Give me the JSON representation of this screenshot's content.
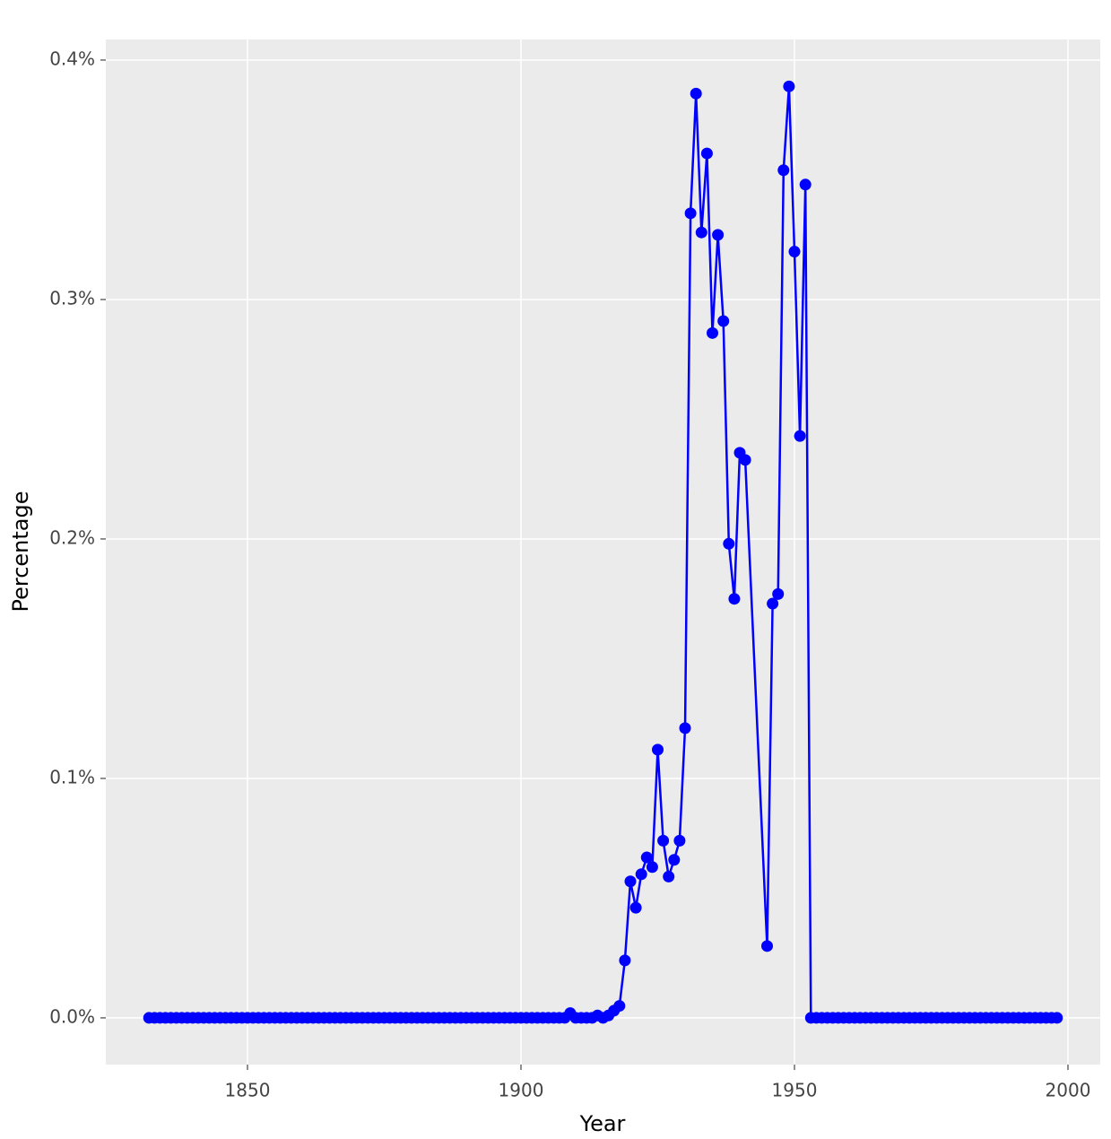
{
  "chart_data": {
    "type": "line",
    "x_label": "Year",
    "y_label": "Percentage",
    "x": [
      1832,
      1833,
      1834,
      1835,
      1836,
      1837,
      1838,
      1839,
      1840,
      1841,
      1842,
      1843,
      1844,
      1845,
      1846,
      1847,
      1848,
      1849,
      1850,
      1851,
      1852,
      1853,
      1854,
      1855,
      1856,
      1857,
      1858,
      1859,
      1860,
      1861,
      1862,
      1863,
      1864,
      1865,
      1866,
      1867,
      1868,
      1869,
      1870,
      1871,
      1872,
      1873,
      1874,
      1875,
      1876,
      1877,
      1878,
      1879,
      1880,
      1881,
      1882,
      1883,
      1884,
      1885,
      1886,
      1887,
      1888,
      1889,
      1890,
      1891,
      1892,
      1893,
      1894,
      1895,
      1896,
      1897,
      1898,
      1899,
      1900,
      1901,
      1902,
      1903,
      1904,
      1905,
      1906,
      1907,
      1908,
      1909,
      1910,
      1911,
      1912,
      1913,
      1914,
      1915,
      1916,
      1917,
      1918,
      1919,
      1920,
      1921,
      1922,
      1923,
      1924,
      1925,
      1926,
      1927,
      1928,
      1929,
      1930,
      1931,
      1932,
      1933,
      1934,
      1935,
      1936,
      1937,
      1938,
      1939,
      1940,
      1941,
      1945,
      1946,
      1947,
      1948,
      1949,
      1950,
      1951,
      1952,
      1953,
      1954,
      1955,
      1956,
      1957,
      1958,
      1959,
      1960,
      1961,
      1962,
      1963,
      1964,
      1965,
      1966,
      1967,
      1968,
      1969,
      1970,
      1971,
      1972,
      1973,
      1974,
      1975,
      1976,
      1977,
      1978,
      1979,
      1980,
      1981,
      1982,
      1983,
      1984,
      1985,
      1986,
      1987,
      1988,
      1989,
      1990,
      1991,
      1992,
      1993,
      1994,
      1995,
      1996,
      1997,
      1998
    ],
    "series": [
      {
        "color": "#0000ff",
        "values": [
          0,
          0,
          0,
          0,
          0,
          0,
          0,
          0,
          0,
          0,
          0,
          0,
          0,
          0,
          0,
          0,
          0,
          0,
          0,
          0,
          0,
          0,
          0,
          0,
          0,
          0,
          0,
          0,
          0,
          0,
          0,
          0,
          0,
          0,
          0,
          0,
          0,
          0,
          0,
          0,
          0,
          0,
          0,
          0,
          0,
          0,
          0,
          0,
          0,
          0,
          0,
          0,
          0,
          0,
          0,
          0,
          0,
          0,
          0,
          0,
          0,
          0,
          0,
          0,
          0,
          0,
          0,
          0,
          0,
          0,
          0,
          0,
          0,
          0,
          0,
          0,
          0,
          0.002,
          0,
          0,
          0,
          0,
          0.001,
          0,
          0.001,
          0.003,
          0.005,
          0.024,
          0.057,
          0.046,
          0.06,
          0.067,
          0.063,
          0.112,
          0.074,
          0.059,
          0.066,
          0.074,
          0.121,
          0.336,
          0.386,
          0.328,
          0.361,
          0.286,
          0.327,
          0.291,
          0.198,
          0.175,
          0.236,
          0.233,
          0.03,
          0.173,
          0.177,
          0.354,
          0.389,
          0.32,
          0.243,
          0.348,
          0,
          0,
          0,
          0,
          0,
          0,
          0,
          0,
          0,
          0,
          0,
          0,
          0,
          0,
          0,
          0,
          0,
          0,
          0,
          0,
          0,
          0,
          0,
          0,
          0,
          0,
          0,
          0,
          0,
          0,
          0,
          0,
          0,
          0,
          0,
          0,
          0,
          0,
          0,
          0,
          0,
          0,
          0,
          0,
          0,
          0
        ]
      }
    ],
    "xlim": [
      1824.1,
      2005.9
    ],
    "xticks": [
      1850,
      1900,
      1950,
      2000
    ],
    "ylim": [
      -0.0195,
      0.4086
    ],
    "yticks": [
      {
        "value": 0,
        "label": "0.0%"
      },
      {
        "value": 0.1,
        "label": "0.1%"
      },
      {
        "value": 0.2,
        "label": "0.2%"
      },
      {
        "value": 0.3,
        "label": "0.3%"
      },
      {
        "value": 0.4,
        "label": "0.4%"
      }
    ],
    "grid": true
  }
}
